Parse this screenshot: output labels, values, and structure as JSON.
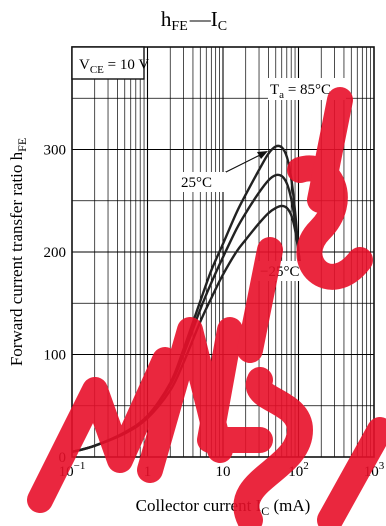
{
  "chart_data": {
    "type": "line",
    "title": {
      "main": "h",
      "main_sub": "FE",
      "dash": "—",
      "second": "I",
      "second_sub": "C"
    },
    "xlabel": {
      "text": "Collector current  I",
      "sub": "C",
      "unit": "  (mA)"
    },
    "ylabel": {
      "text": "Forward current transfer ratio  h",
      "sub": "FE"
    },
    "x_scale": "log",
    "xlim": [
      0.1,
      1000
    ],
    "ylim": [
      0,
      400
    ],
    "x_ticks": [
      {
        "value": 0.1,
        "base": "10",
        "exp": "−1"
      },
      {
        "value": 1,
        "base": "1",
        "exp": ""
      },
      {
        "value": 10,
        "base": "10",
        "exp": ""
      },
      {
        "value": 100,
        "base": "10",
        "exp": "2"
      },
      {
        "value": 1000,
        "base": "10",
        "exp": "3"
      }
    ],
    "y_ticks": [
      {
        "value": 0,
        "label": "0"
      },
      {
        "value": 100,
        "label": "100"
      },
      {
        "value": 200,
        "label": "200"
      },
      {
        "value": 300,
        "label": "300"
      }
    ],
    "condition": {
      "main": "V",
      "sub": "CE",
      "rest": " = 10 V"
    },
    "grid": true,
    "colors": {
      "line": "#222222",
      "grid": "#000000",
      "watermark": "#e8102a"
    },
    "series": [
      {
        "name": "85°C",
        "label": {
          "pre": "T",
          "sub": "a",
          "rest": " = 85°C"
        },
        "x": [
          0.1,
          0.2,
          0.5,
          1,
          2,
          3,
          5,
          7,
          10,
          15,
          20,
          30,
          40,
          50,
          60,
          70,
          80,
          90,
          100,
          110
        ],
        "y": [
          5,
          11,
          24,
          40,
          72,
          105,
          152,
          182,
          208,
          238,
          256,
          280,
          296,
          303,
          302,
          293,
          272,
          240,
          200,
          175
        ]
      },
      {
        "name": "25°C",
        "label": {
          "pre": "",
          "sub": "",
          "rest": "25°C"
        },
        "x": [
          0.1,
          0.2,
          0.5,
          1,
          2,
          3,
          5,
          7,
          10,
          15,
          20,
          30,
          40,
          50,
          60,
          70,
          80,
          90,
          100,
          110
        ],
        "y": [
          5,
          11,
          24,
          40,
          70,
          100,
          144,
          170,
          195,
          222,
          238,
          258,
          270,
          275,
          274,
          267,
          252,
          230,
          200,
          175
        ]
      },
      {
        "name": "−25°C",
        "label": {
          "pre": "",
          "sub": "",
          "rest": "−25°C"
        },
        "x": [
          0.1,
          0.2,
          0.5,
          1,
          2,
          3,
          5,
          7,
          10,
          15,
          20,
          30,
          40,
          50,
          60,
          70,
          80,
          90,
          100,
          110
        ],
        "y": [
          5,
          11,
          23,
          38,
          65,
          92,
          132,
          155,
          178,
          200,
          212,
          228,
          238,
          243,
          245,
          243,
          236,
          222,
          200,
          175
        ]
      }
    ]
  }
}
